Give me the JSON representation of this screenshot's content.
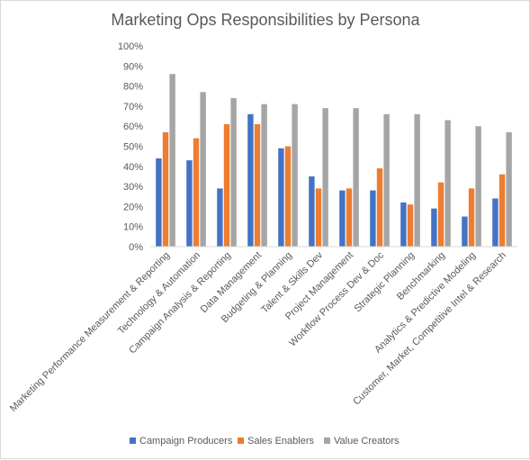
{
  "chart_data": {
    "type": "bar",
    "title": "Marketing Ops Responsibilities by Persona",
    "xlabel": "",
    "ylabel": "",
    "ylim": [
      0,
      100
    ],
    "yticks": [
      "0%",
      "10%",
      "20%",
      "30%",
      "40%",
      "50%",
      "60%",
      "70%",
      "80%",
      "90%",
      "100%"
    ],
    "grid": false,
    "legend_position": "bottom",
    "categories": [
      "Marketing Performance  Measurement & Reporting",
      "Technology & Automation",
      "Campaign Analysis & Reporting",
      "Data Management",
      "Budgeting & Planning",
      "Talent & Skills Dev",
      "Project Management",
      "Workflow Process Dev & Doc",
      "Strategic Planning",
      "Benchmarking",
      "Analytics & Predictive Modeling",
      "Customer, Market, Competitive Intel & Research"
    ],
    "series": [
      {
        "name": "Campaign Producers",
        "color": "#4472C4",
        "values": [
          44,
          43,
          29,
          66,
          49,
          35,
          28,
          28,
          22,
          19,
          15,
          24
        ]
      },
      {
        "name": "Sales Enablers",
        "color": "#ED7D31",
        "values": [
          57,
          54,
          61,
          61,
          50,
          29,
          29,
          39,
          21,
          32,
          29,
          36
        ]
      },
      {
        "name": "Value Creators",
        "color": "#A5A5A5",
        "values": [
          86,
          77,
          74,
          71,
          71,
          69,
          69,
          66,
          66,
          63,
          60,
          57
        ]
      }
    ]
  }
}
